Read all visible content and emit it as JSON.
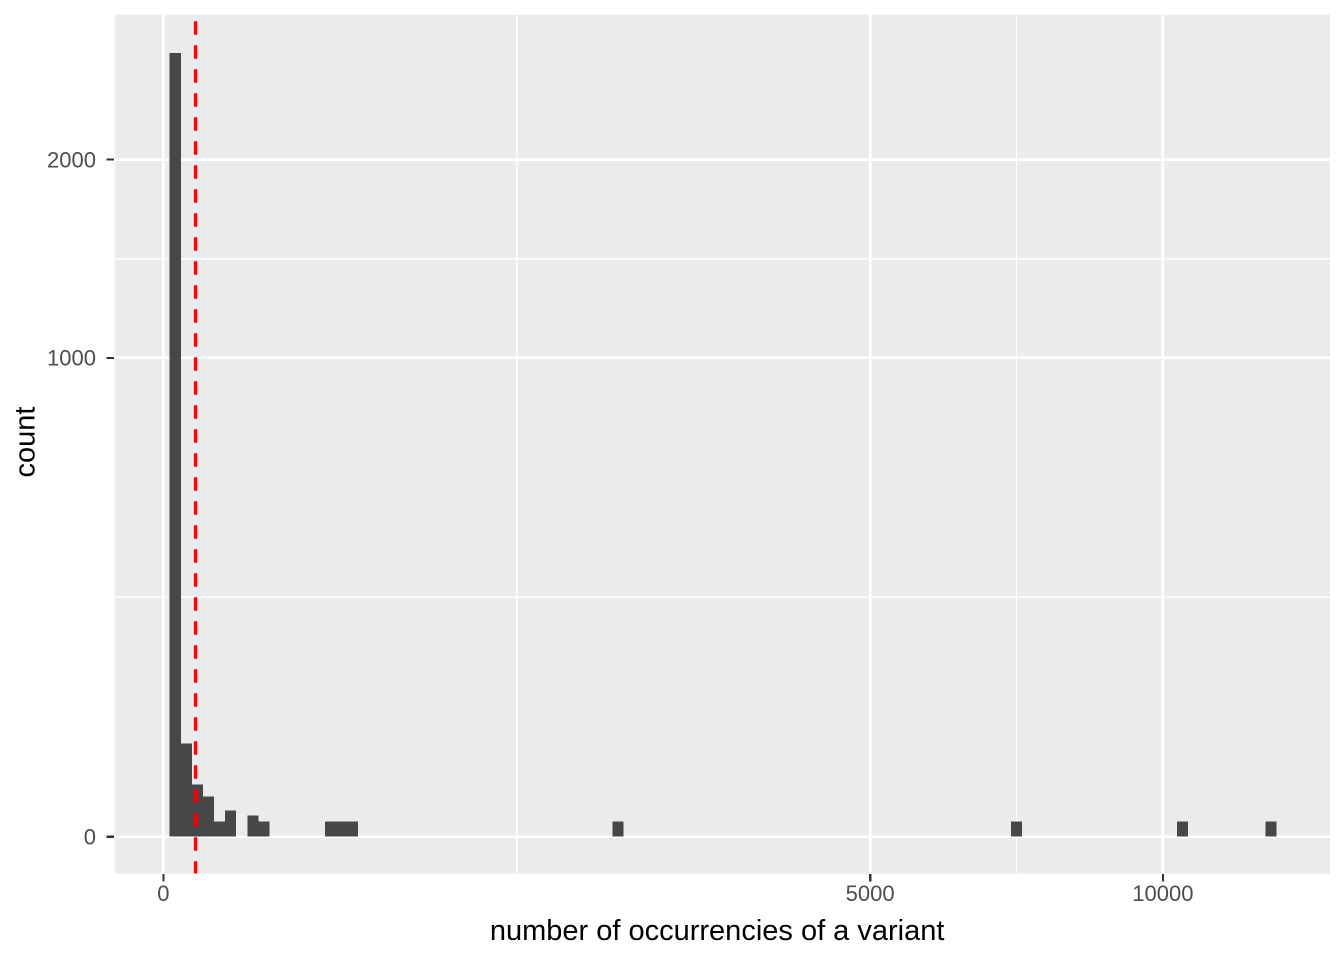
{
  "chart_data": {
    "type": "histogram",
    "title": "",
    "xlabel": "number of occurrencies of a variant",
    "ylabel": "count",
    "x_scale": "sqrt",
    "y_scale": "sqrt",
    "x_ticks": {
      "values": [
        0,
        5000,
        10000
      ],
      "labels": [
        "0",
        "5000",
        "10000"
      ]
    },
    "y_ticks": {
      "values": [
        0,
        1000,
        2000
      ],
      "labels": [
        "0",
        "1000",
        "2000"
      ]
    },
    "bins": [
      {
        "from": 0.4,
        "to": 3.1,
        "count": 2680
      },
      {
        "from": 3.1,
        "to": 8.2,
        "count": 38
      },
      {
        "from": 8.2,
        "to": 15.7,
        "count": 12
      },
      {
        "from": 15.7,
        "to": 25.7,
        "count": 7
      },
      {
        "from": 25.7,
        "to": 38.2,
        "count": 1
      },
      {
        "from": 38.2,
        "to": 53.1,
        "count": 3
      },
      {
        "from": 70.4,
        "to": 90.3,
        "count": 2
      },
      {
        "from": 90.3,
        "to": 112.5,
        "count": 1
      },
      {
        "from": 260.6,
        "to": 297.6,
        "count": 1
      },
      {
        "from": 297.6,
        "to": 337.1,
        "count": 1
      },
      {
        "from": 337.1,
        "to": 379.0,
        "count": 1
      },
      {
        "from": 2019,
        "to": 2120,
        "count": 1
      },
      {
        "from": 7192,
        "to": 7381,
        "count": 1
      },
      {
        "from": 10285,
        "to": 10511,
        "count": 1
      },
      {
        "from": 12160,
        "to": 12406,
        "count": 1
      }
    ],
    "vline": {
      "x": 10.3,
      "color": "#FF0000",
      "style": "dashed"
    },
    "colors": {
      "panel_background": "#EBEBEB",
      "grid": "#FFFFFF",
      "bar": "#474747",
      "tick_text": "#4D4D4D",
      "axis_title": "#000000",
      "tick_mark": "#333333"
    }
  }
}
